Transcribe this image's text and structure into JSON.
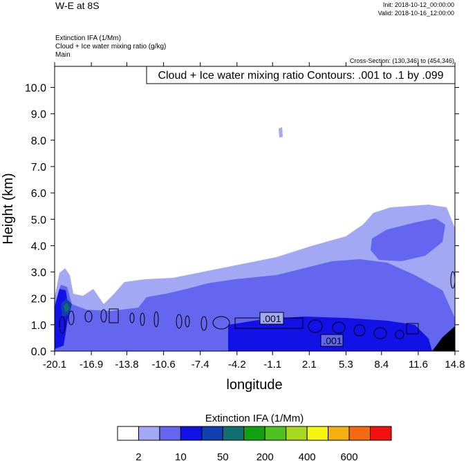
{
  "chart_data": {
    "type": "contour",
    "title": "W-E at 8S",
    "init": "Init: 2018-10-12_00:00:00",
    "valid": "Valid: 2018-10-16_12:00:00",
    "field_lines": [
      "Extinction IFA   (1/Mm)",
      "Cloud + Ice water mixing ratio   (g/kg)",
      "Main"
    ],
    "cross_section": "Cross-Section: (130,346) to (454,346)",
    "contour_info": "Cloud + Ice water mixing ratio Contours: .001 to .1 by .099",
    "contour_labels": [
      ".001",
      ".001"
    ],
    "x_label": "longitude",
    "y_label": "Height (km)",
    "xlim": [
      -20.1,
      14.8
    ],
    "xticks": [
      -20.1,
      -16.9,
      -13.8,
      -10.6,
      -7.4,
      -4.2,
      -1.1,
      2.1,
      5.3,
      8.4,
      11.6,
      14.8
    ],
    "ylim": [
      0,
      10.8
    ],
    "yticks": [
      {
        "value": 0,
        "label": "0.0"
      },
      {
        "value": 1,
        "label": "1.0"
      },
      {
        "value": 2,
        "label": "2.0"
      },
      {
        "value": 3,
        "label": "3.0"
      },
      {
        "value": 4,
        "label": "4.0"
      },
      {
        "value": 5,
        "label": "5.0"
      },
      {
        "value": 6,
        "label": "6.0"
      },
      {
        "value": 7,
        "label": "7.0"
      },
      {
        "value": 8,
        "label": "8.0"
      },
      {
        "value": 9,
        "label": "9.0"
      },
      {
        "value": 10,
        "label": "10.0"
      }
    ],
    "colorbar": {
      "title": "Extinction IFA  (1/Mm)",
      "colors": [
        "#ffffff",
        "#a3a8f5",
        "#6466f0",
        "#1212e6",
        "#1040b0",
        "#107070",
        "#10a010",
        "#50c020",
        "#a8d820",
        "#f5f510",
        "#f5b010",
        "#f56a10",
        "#f51010"
      ],
      "ticks": [
        2,
        10,
        50,
        200,
        400,
        600
      ]
    }
  }
}
